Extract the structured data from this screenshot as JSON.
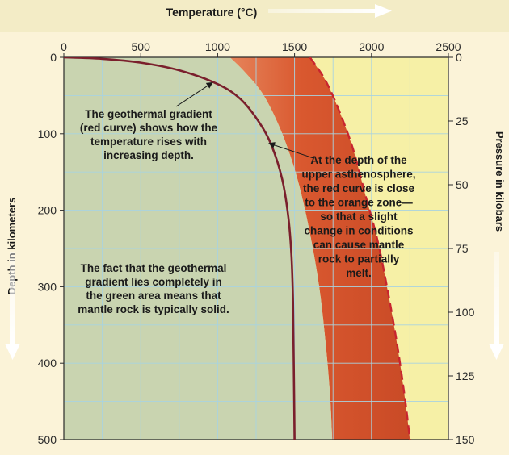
{
  "chart_data": {
    "type": "line",
    "title": "",
    "xlabel": "Temperature (°C)",
    "ylabel": "Depth in kilometers",
    "ylabel_right": "Pressure in kilobars",
    "xlim": [
      0,
      2500
    ],
    "ylim": [
      0,
      500
    ],
    "y2lim": [
      0,
      150
    ],
    "x_ticks": [
      0,
      500,
      1000,
      1500,
      2000,
      2500
    ],
    "y_ticks": [
      0,
      100,
      200,
      300,
      400,
      500
    ],
    "y2_ticks": [
      0,
      25,
      50,
      75,
      100,
      125,
      150
    ],
    "grid": true,
    "regions": [
      {
        "name": "solid mantle rock",
        "color": "#c9d4b0"
      },
      {
        "name": "partial melting zone",
        "color": "#e07a4e"
      },
      {
        "name": "melted rock",
        "color": "#f6f0a6"
      }
    ],
    "series": [
      {
        "name": "Geothermal gradient",
        "style": "solid",
        "color": "#7a1f2c",
        "x": [
          0,
          250,
          500,
          750,
          1000,
          1150,
          1270,
          1350,
          1420,
          1460,
          1480,
          1490,
          1495,
          1500
        ],
        "y": [
          0,
          2,
          7,
          17,
          35,
          55,
          85,
          115,
          160,
          210,
          260,
          320,
          400,
          500
        ]
      },
      {
        "name": "Start of melting (solidus)",
        "style": "boundary",
        "color": "#f4e6a6",
        "x": [
          1080,
          1180,
          1300,
          1420,
          1520,
          1600,
          1660,
          1700,
          1730,
          1745
        ],
        "y": [
          0,
          20,
          50,
          100,
          160,
          230,
          300,
          370,
          440,
          500
        ]
      },
      {
        "name": "Complete melting (liquidus)",
        "style": "dashed",
        "color": "#c8252f",
        "x": [
          1600,
          1700,
          1790,
          1880,
          1960,
          2040,
          2110,
          2170,
          2220,
          2250
        ],
        "y": [
          0,
          30,
          70,
          120,
          180,
          240,
          310,
          380,
          450,
          500
        ]
      }
    ],
    "annotations": [
      {
        "id": "gradient",
        "lines": [
          "The geothermal gradient",
          "(red curve) shows how the",
          "temperature rises with",
          "increasing depth."
        ]
      },
      {
        "id": "asthenosphere",
        "lines": [
          "At the depth of the",
          "upper asthenosphere,",
          "the red curve is close",
          "to the orange zone—",
          "so that a slight",
          "change in conditions",
          "can cause mantle",
          "rock to partially",
          "melt."
        ]
      },
      {
        "id": "solid",
        "lines": [
          "The fact that the geothermal",
          "gradient lies completely in",
          "the green area means that",
          "mantle rock is typically solid."
        ]
      }
    ]
  }
}
